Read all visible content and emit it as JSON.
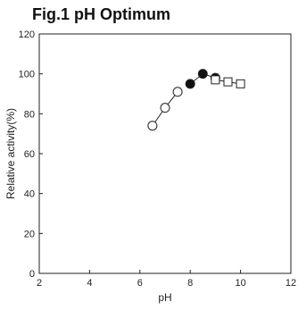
{
  "chart_data": {
    "type": "scatter",
    "title": "Fig.1 pH Optimum",
    "xlabel": "pH",
    "ylabel": "Relative activity(%)",
    "xlim": [
      2,
      12
    ],
    "ylim": [
      0,
      120
    ],
    "xticks": [
      2,
      4,
      6,
      8,
      10,
      12
    ],
    "yticks": [
      0,
      20,
      40,
      60,
      80,
      100,
      120
    ],
    "grid": false,
    "series": [
      {
        "marker": "circle-open",
        "x": [
          6.5,
          7.0,
          7.5
        ],
        "y": [
          74,
          83,
          91
        ]
      },
      {
        "marker": "circle-filled",
        "x": [
          8.0,
          8.5,
          9.0
        ],
        "y": [
          95,
          100,
          98
        ]
      },
      {
        "marker": "square-open",
        "x": [
          9.0,
          9.5,
          10.0
        ],
        "y": [
          97,
          96,
          95
        ]
      }
    ]
  }
}
